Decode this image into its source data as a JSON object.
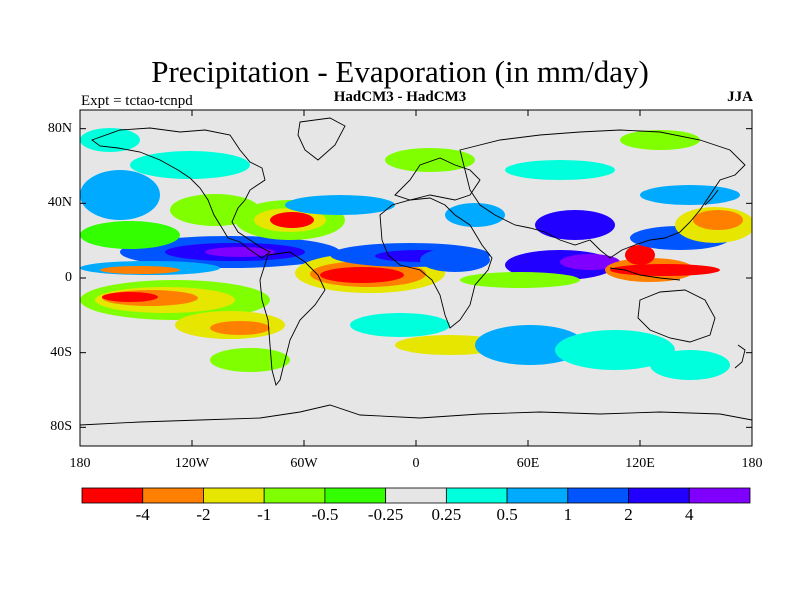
{
  "title": "Precipitation - Evaporation (in mm/day)",
  "subtitle_left": "Expt = tctao-tcnpd",
  "subtitle_center": "HadCM3 - HadCM3",
  "subtitle_right": "JJA",
  "map": {
    "projection": "cylindrical equidistant",
    "lon_range": [
      -180,
      180
    ],
    "lat_range": [
      -90,
      90
    ],
    "y_ticks": [
      {
        "lat": 80,
        "label": "80N"
      },
      {
        "lat": 40,
        "label": "40N"
      },
      {
        "lat": 0,
        "label": "0"
      },
      {
        "lat": -40,
        "label": "40S"
      },
      {
        "lat": -80,
        "label": "80S"
      }
    ],
    "x_ticks": [
      {
        "lon": -180,
        "label": "180"
      },
      {
        "lon": -120,
        "label": "120W"
      },
      {
        "lon": -60,
        "label": "60W"
      },
      {
        "lon": 0,
        "label": "0"
      },
      {
        "lon": 60,
        "label": "60E"
      },
      {
        "lon": 120,
        "label": "120E"
      },
      {
        "lon": 180,
        "label": "180"
      }
    ],
    "background_color": "#e6e6e6",
    "coastline_color": "#000000"
  },
  "colorbar": {
    "colors": [
      "#ff0000",
      "#ff8000",
      "#e6e600",
      "#80ff00",
      "#33ff00",
      "#e6e6e6",
      "#00ffdd",
      "#00aaff",
      "#0055ff",
      "#2200ff",
      "#7f00ff"
    ],
    "labels": [
      "-4",
      "-2",
      "-1",
      "-0.5",
      "-0.25",
      "0.25",
      "0.5",
      "1",
      "2",
      "4"
    ]
  }
}
